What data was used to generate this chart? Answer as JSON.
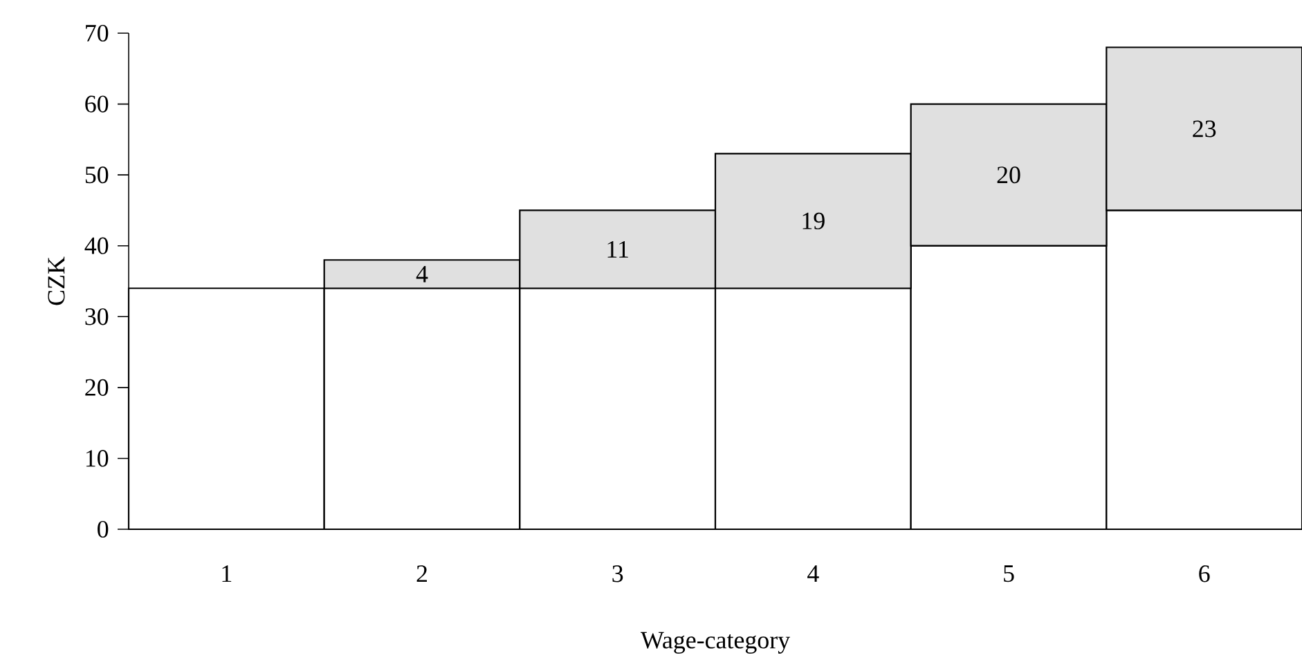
{
  "chart_data": {
    "type": "bar",
    "stacked": true,
    "xlabel": "Wage-category",
    "ylabel": "CZK",
    "categories": [
      "1",
      "2",
      "3",
      "4",
      "5",
      "6"
    ],
    "series": [
      {
        "color": "#ffffff",
        "values": [
          34,
          34,
          34,
          34,
          40,
          45
        ]
      },
      {
        "color": "#e0e0e0",
        "values": [
          null,
          4,
          11,
          19,
          20,
          23
        ],
        "value_labels": [
          null,
          "4",
          "11",
          "19",
          "20",
          "23"
        ]
      }
    ],
    "ylim": [
      0,
      70
    ],
    "yticks": [
      0,
      10,
      20,
      30,
      40,
      50,
      60,
      70
    ]
  }
}
